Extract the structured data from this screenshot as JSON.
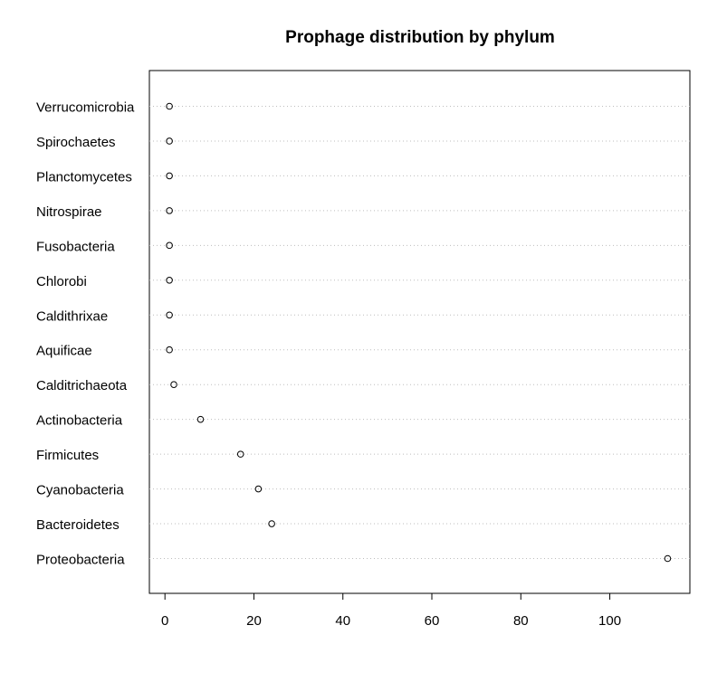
{
  "chart_data": {
    "type": "scatter",
    "subtype": "dotchart",
    "title": "Prophage distribution by phylum",
    "xlabel": "",
    "ylabel": "",
    "categories": [
      "Verrucomicrobia",
      "Spirochaetes",
      "Planctomycetes",
      "Nitrospirae",
      "Fusobacteria",
      "Chlorobi",
      "Caldithrixae",
      "Aquificae",
      "Calditrichaeota",
      "Actinobacteria",
      "Firmicutes",
      "Cyanobacteria",
      "Bacteroidetes",
      "Proteobacteria"
    ],
    "values": [
      1,
      1,
      1,
      1,
      1,
      1,
      1,
      1,
      2,
      8,
      17,
      21,
      24,
      113
    ],
    "xlim": [
      -3.5,
      118
    ],
    "xticks": [
      0,
      20,
      40,
      60,
      80,
      100
    ],
    "xtick_labels": [
      "0",
      "20",
      "40",
      "60",
      "80",
      "100"
    ],
    "grid": "dotted horizontal guide lines per category",
    "legend": "none"
  }
}
